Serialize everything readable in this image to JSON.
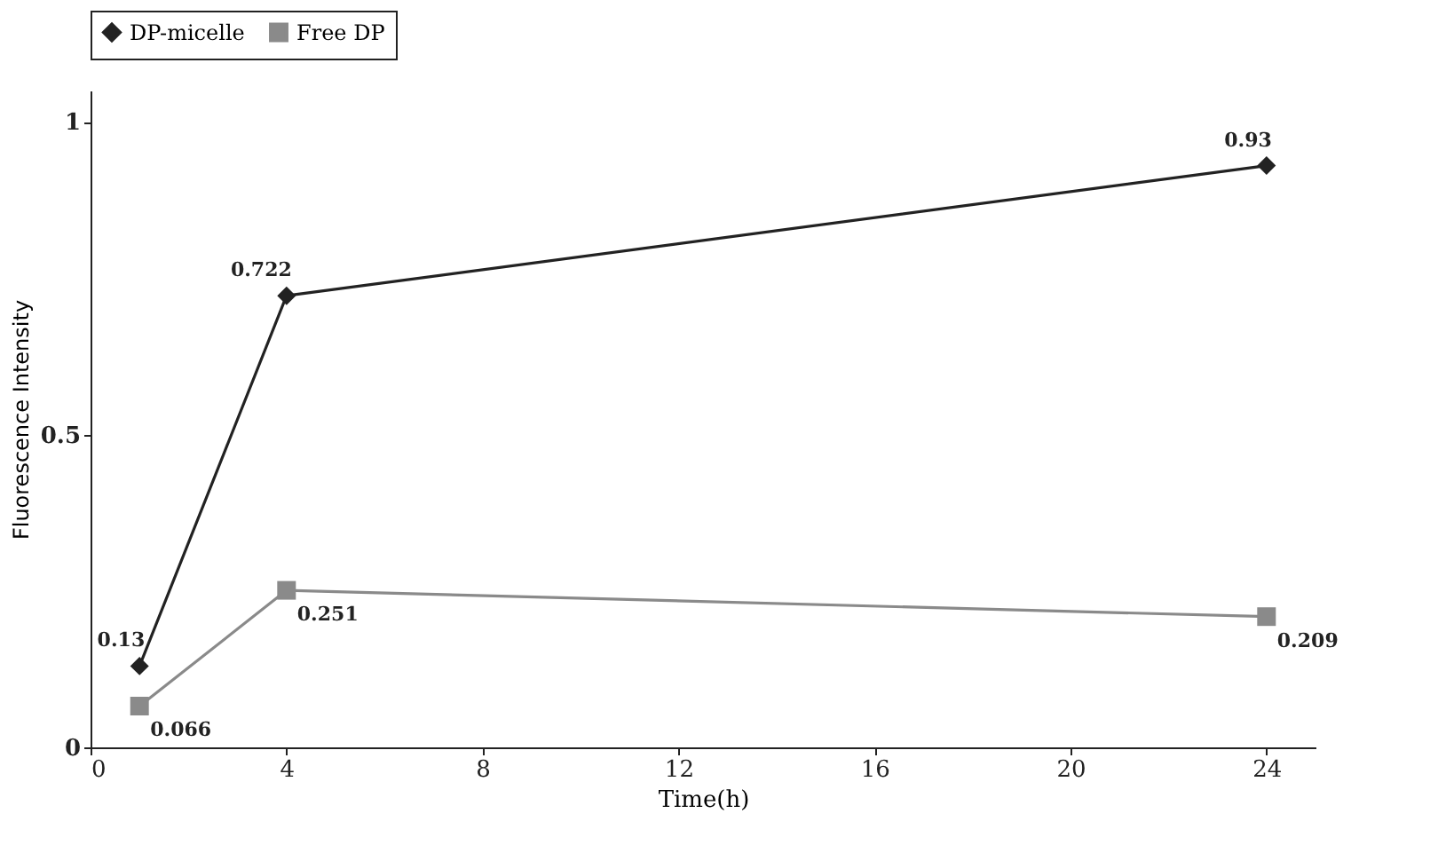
{
  "chart_data": {
    "type": "line",
    "xlabel": "Time(h)",
    "ylabel": "Fluorescence  Intensity",
    "x": [
      1,
      4,
      24
    ],
    "series": [
      {
        "name": "DP-micelle",
        "color": "#222222",
        "marker": "diamond",
        "values": [
          0.13,
          0.722,
          0.93
        ]
      },
      {
        "name": "Free DP",
        "color": "#8a8a8a",
        "marker": "square",
        "values": [
          0.066,
          0.251,
          0.209
        ]
      }
    ],
    "xlim": [
      0,
      25
    ],
    "xticks": [
      0,
      4,
      8,
      12,
      16,
      20,
      24
    ],
    "ylim": [
      0,
      1.05
    ],
    "yticks": [
      0,
      0.5,
      1
    ],
    "data_labels": true,
    "grid": false,
    "legend": "top",
    "line_style": "solid"
  }
}
